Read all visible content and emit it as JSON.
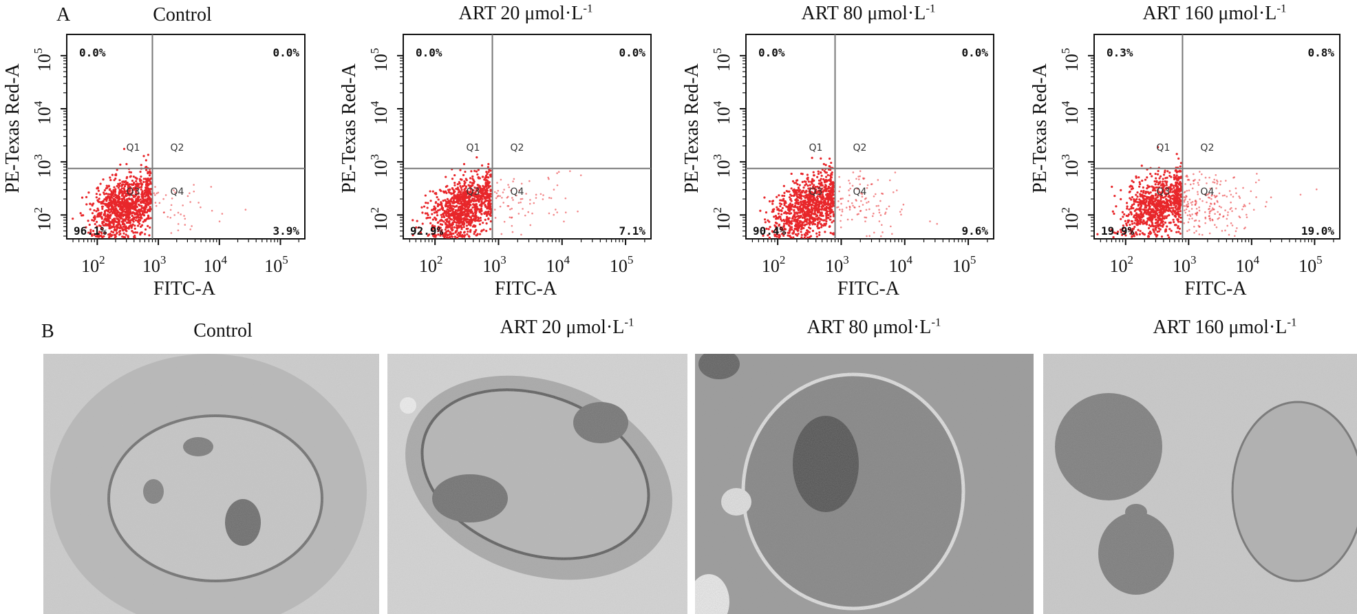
{
  "panel_a_letter": "A",
  "panel_b_letter": "B",
  "unit_text": "μmol·L",
  "unit_exponent": "-1",
  "colors": {
    "dots": "#e8262a",
    "axis": "#111111",
    "gate": "#777777",
    "em_bg": "#c9c9c9"
  },
  "chart_data": [
    {
      "type": "scatter",
      "title": "Control",
      "xlabel": "FITC-A",
      "ylabel": "PE-Texas Red-A",
      "x_scale": "log",
      "y_scale": "log",
      "x_ticks": [
        "10^2",
        "10^3",
        "10^4",
        "10^5"
      ],
      "y_ticks": [
        "10^2",
        "10^3",
        "10^4",
        "10^5"
      ],
      "gate_x": 800,
      "gate_y": 750,
      "quadrants": [
        {
          "name": "Q1",
          "percent": "0.0%"
        },
        {
          "name": "Q2",
          "percent": "0.0%"
        },
        {
          "name": "Q3",
          "percent": "96.1%"
        },
        {
          "name": "Q4",
          "percent": "3.9%"
        }
      ]
    },
    {
      "type": "scatter",
      "title": "ART 20",
      "xlabel": "FITC-A",
      "ylabel": "PE-Texas Red-A",
      "x_scale": "log",
      "y_scale": "log",
      "x_ticks": [
        "10^2",
        "10^3",
        "10^4",
        "10^5"
      ],
      "y_ticks": [
        "10^2",
        "10^3",
        "10^4",
        "10^5"
      ],
      "gate_x": 800,
      "gate_y": 750,
      "quadrants": [
        {
          "name": "Q1",
          "percent": "0.0%"
        },
        {
          "name": "Q2",
          "percent": "0.0%"
        },
        {
          "name": "Q3",
          "percent": "92.9%"
        },
        {
          "name": "Q4",
          "percent": "7.1%"
        }
      ]
    },
    {
      "type": "scatter",
      "title": "ART 80",
      "xlabel": "FITC-A",
      "ylabel": "PE-Texas Red-A",
      "x_scale": "log",
      "y_scale": "log",
      "x_ticks": [
        "10^2",
        "10^3",
        "10^4",
        "10^5"
      ],
      "y_ticks": [
        "10^2",
        "10^3",
        "10^4",
        "10^5"
      ],
      "gate_x": 800,
      "gate_y": 750,
      "quadrants": [
        {
          "name": "Q1",
          "percent": "0.0%"
        },
        {
          "name": "Q2",
          "percent": "0.0%"
        },
        {
          "name": "Q3",
          "percent": "90.4%"
        },
        {
          "name": "Q4",
          "percent": "9.6%"
        }
      ]
    },
    {
      "type": "scatter",
      "title": "ART 160",
      "xlabel": "FITC-A",
      "ylabel": "PE-Texas Red-A",
      "x_scale": "log",
      "y_scale": "log",
      "x_ticks": [
        "10^2",
        "10^3",
        "10^4",
        "10^5"
      ],
      "y_ticks": [
        "10^2",
        "10^3",
        "10^4",
        "10^5"
      ],
      "gate_x": 800,
      "gate_y": 750,
      "quadrants": [
        {
          "name": "Q1",
          "percent": "0.3%"
        },
        {
          "name": "Q2",
          "percent": "0.8%"
        },
        {
          "name": "Q3",
          "percent": "19.9%"
        },
        {
          "name": "Q4",
          "percent": "19.0%"
        }
      ]
    }
  ],
  "em_panels": [
    {
      "title": "Control",
      "has_unit": false
    },
    {
      "title": "ART 20",
      "has_unit": true
    },
    {
      "title": "ART 80",
      "has_unit": true
    },
    {
      "title": "ART 160",
      "has_unit": true
    }
  ]
}
